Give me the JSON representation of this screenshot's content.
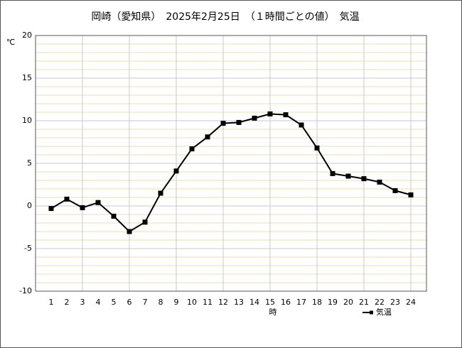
{
  "chart_data": {
    "type": "line",
    "title": "岡崎（愛知県）　2025年2月25日　（１時間ごとの値）　気温",
    "y_label": "℃",
    "x_label": "時",
    "x": [
      1,
      2,
      3,
      4,
      5,
      6,
      7,
      8,
      9,
      10,
      11,
      12,
      13,
      14,
      15,
      16,
      17,
      18,
      19,
      20,
      21,
      22,
      23,
      24
    ],
    "series": [
      {
        "name": "気温",
        "color": "#000000",
        "values": [
          -0.3,
          0.8,
          -0.2,
          0.4,
          -1.2,
          -3.0,
          -1.9,
          1.5,
          4.1,
          6.7,
          8.1,
          9.7,
          9.8,
          10.3,
          10.8,
          10.7,
          9.5,
          6.8,
          3.8,
          3.5,
          3.2,
          2.8,
          1.8,
          1.3
        ]
      }
    ],
    "xlim": [
      0,
      25
    ],
    "xticks": [
      1,
      2,
      3,
      4,
      5,
      6,
      7,
      8,
      9,
      10,
      11,
      12,
      13,
      14,
      15,
      16,
      17,
      18,
      19,
      20,
      21,
      22,
      23,
      24
    ],
    "xgrid": [
      3,
      6,
      9,
      12,
      15,
      18,
      21,
      24
    ],
    "ylim": [
      -10,
      20
    ],
    "yticks": [
      -10,
      -5,
      0,
      5,
      10,
      15,
      20
    ],
    "yminor_step": 1,
    "grid": true,
    "legend": "bottom-right"
  }
}
